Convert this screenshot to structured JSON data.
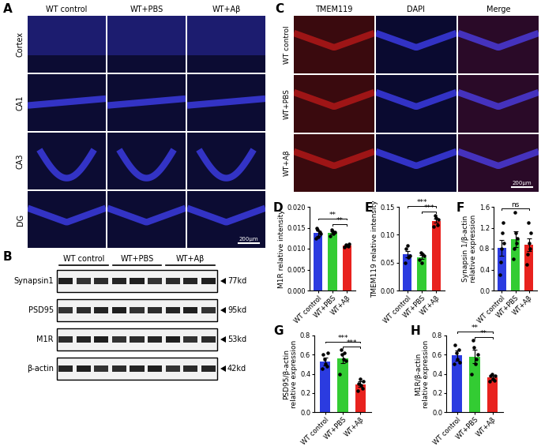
{
  "images": {
    "A": {
      "panel": "A",
      "columns": [
        "WT control",
        "WT+PBS",
        "WT+Aβ"
      ],
      "rows": [
        "Cortex",
        "CA1",
        "CA3",
        "DG"
      ],
      "scale_bar": "200μm"
    },
    "C": {
      "panel": "C",
      "columns": [
        "TMEM119",
        "DAPI",
        "Merge"
      ],
      "rows": [
        "WT control",
        "WT+PBS",
        "WT+Aβ"
      ],
      "scale_bar": "200μm"
    }
  },
  "western_blot": {
    "panel": "B",
    "groups": [
      "WT control",
      "WT+PBS",
      "WT+Aβ"
    ],
    "bands": [
      {
        "name": "Synapsin1",
        "size": "77kd"
      },
      {
        "name": "PSD95",
        "size": "95kd"
      },
      {
        "name": "M1R",
        "size": "53kd"
      },
      {
        "name": "β-actin",
        "size": "42kd"
      }
    ]
  },
  "chart_data": [
    {
      "type": "bar",
      "panel": "D",
      "y_label": "M1R relative intensity",
      "categories": [
        "WT control",
        "WT+PBS",
        "WT+Aβ"
      ],
      "values": [
        0.0137,
        0.0138,
        0.0108
      ],
      "errors": [
        0.0007,
        0.0003,
        0.0002
      ],
      "points": [
        [
          0.0125,
          0.015,
          0.0145,
          0.0128,
          0.014,
          0.0135
        ],
        [
          0.013,
          0.0145,
          0.0142,
          0.0135,
          0.014
        ],
        [
          0.0103,
          0.011,
          0.0108,
          0.0106,
          0.0112
        ]
      ],
      "colors": [
        "#2b3be0",
        "#33cc33",
        "#e8221e"
      ],
      "ylim": [
        0,
        0.02
      ],
      "yticks": [
        {
          "value": 0,
          "label": "0.000"
        },
        {
          "value": 0.005,
          "label": "0.005"
        },
        {
          "value": 0.01,
          "label": "0.010"
        },
        {
          "value": 0.015,
          "label": "0.015"
        },
        {
          "value": 0.02,
          "label": "0.020"
        }
      ],
      "annotations": [
        {
          "from": "WT control",
          "to": "WT+Aβ",
          "text": "**"
        },
        {
          "from": "WT+PBS",
          "to": "WT+Aβ",
          "text": "**"
        }
      ]
    },
    {
      "type": "bar",
      "panel": "E",
      "y_label": "TMEM119 relative intensity",
      "categories": [
        "WT control",
        "WT+PBS",
        "WT+Aβ"
      ],
      "values": [
        0.065,
        0.06,
        0.125
      ],
      "errors": [
        0.006,
        0.004,
        0.004
      ],
      "points": [
        [
          0.05,
          0.075,
          0.08,
          0.06,
          0.062
        ],
        [
          0.055,
          0.068,
          0.05,
          0.065,
          0.062
        ],
        [
          0.115,
          0.135,
          0.13,
          0.118,
          0.128
        ]
      ],
      "colors": [
        "#2b3be0",
        "#33cc33",
        "#e8221e"
      ],
      "ylim": [
        0,
        0.15
      ],
      "yticks": [
        {
          "value": 0,
          "label": "0.00"
        },
        {
          "value": 0.05,
          "label": "0.05"
        },
        {
          "value": 0.1,
          "label": "0.10"
        },
        {
          "value": 0.15,
          "label": "0.15"
        }
      ],
      "annotations": [
        {
          "from": "WT control",
          "to": "WT+Aβ",
          "text": "***"
        },
        {
          "from": "WT+PBS",
          "to": "WT+Aβ",
          "text": "***"
        }
      ]
    },
    {
      "type": "bar",
      "panel": "F",
      "y_label": "Synapsin 1/β-actin\nrelative expression",
      "categories": [
        "WT control",
        "WT+PBS",
        "WT+Aβ"
      ],
      "values": [
        0.82,
        0.98,
        0.88
      ],
      "errors": [
        0.15,
        0.15,
        0.12
      ],
      "points": [
        [
          0.3,
          0.55,
          0.8,
          1.1,
          1.3,
          0.9
        ],
        [
          0.6,
          0.8,
          1.5,
          1.1,
          0.9,
          1.0
        ],
        [
          0.5,
          0.7,
          1.3,
          0.9,
          0.8,
          1.1
        ]
      ],
      "colors": [
        "#2b3be0",
        "#33cc33",
        "#e8221e"
      ],
      "ylim": [
        0,
        1.6
      ],
      "yticks": [
        {
          "value": 0,
          "label": "0.0"
        },
        0.4,
        0.8,
        1.2,
        1.6
      ],
      "annotations": [
        {
          "from": "WT control",
          "to": "WT+Aβ",
          "text": "ns"
        }
      ]
    },
    {
      "type": "bar",
      "panel": "G",
      "y_label": "PSD95/β-actin\nrelative expression",
      "categories": [
        "WT control",
        "WT+PBS",
        "WT+Aβ"
      ],
      "values": [
        0.53,
        0.56,
        0.29
      ],
      "errors": [
        0.04,
        0.05,
        0.03
      ],
      "points": [
        [
          0.45,
          0.6,
          0.55,
          0.5,
          0.48,
          0.62
        ],
        [
          0.4,
          0.65,
          0.6,
          0.55,
          0.62,
          0.54
        ],
        [
          0.22,
          0.3,
          0.35,
          0.28,
          0.25,
          0.32
        ]
      ],
      "colors": [
        "#2b3be0",
        "#33cc33",
        "#e8221e"
      ],
      "ylim": [
        0,
        0.8
      ],
      "yticks": [
        {
          "value": 0,
          "label": "0.0"
        },
        0.2,
        0.4,
        0.6,
        0.8
      ],
      "annotations": [
        {
          "from": "WT control",
          "to": "WT+Aβ",
          "text": "***"
        },
        {
          "from": "WT+PBS",
          "to": "WT+Aβ",
          "text": "***"
        }
      ]
    },
    {
      "type": "bar",
      "panel": "H",
      "y_label": "M1R/β-actin\nrelative expression",
      "categories": [
        "WT control",
        "WT+PBS",
        "WT+Aβ"
      ],
      "values": [
        0.59,
        0.58,
        0.36
      ],
      "errors": [
        0.05,
        0.07,
        0.02
      ],
      "points": [
        [
          0.5,
          0.7,
          0.62,
          0.55,
          0.65,
          0.52
        ],
        [
          0.4,
          0.75,
          0.68,
          0.5,
          0.55,
          0.6
        ],
        [
          0.32,
          0.38,
          0.4,
          0.35,
          0.33,
          0.38
        ]
      ],
      "colors": [
        "#2b3be0",
        "#33cc33",
        "#e8221e"
      ],
      "ylim": [
        0,
        0.8
      ],
      "yticks": [
        {
          "value": 0,
          "label": "0.0"
        },
        0.2,
        0.4,
        0.6,
        0.8
      ],
      "annotations": [
        {
          "from": "WT control",
          "to": "WT+Aβ",
          "text": "**"
        },
        {
          "from": "WT+PBS",
          "to": "WT+Aβ",
          "text": "**"
        }
      ]
    }
  ]
}
